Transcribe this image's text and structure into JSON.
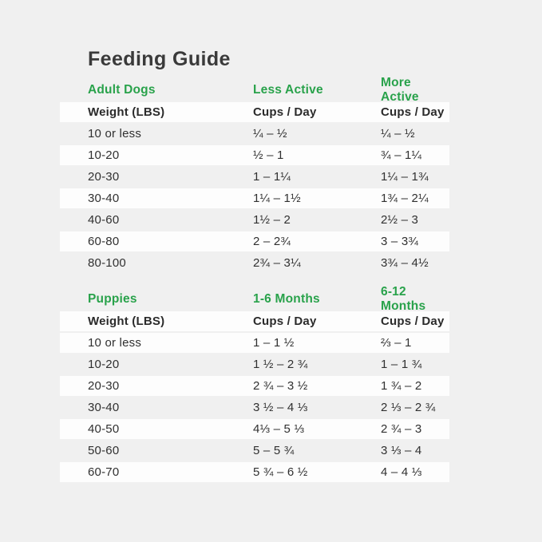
{
  "page": {
    "title": "Feeding Guide",
    "background": "#f0f0f0",
    "stripe_color": "#fdfdfd",
    "accent_green": "#29a24b",
    "title_color": "#3a3a3a"
  },
  "tables": [
    {
      "section_label": "Adult Dogs",
      "col2_label": "Less Active",
      "col3_label": "More Active",
      "header": {
        "col1": "Weight (LBS)",
        "col2": "Cups / Day",
        "col3": "Cups / Day"
      },
      "rows": [
        {
          "weight": "10 or less",
          "col2": "¼ – ½",
          "col3": "¼ – ½",
          "highlight": false
        },
        {
          "weight": "10-20",
          "col2": "½ – 1",
          "col3": "¾ – 1¼",
          "highlight": true
        },
        {
          "weight": "20-30",
          "col2": "1 – 1¼",
          "col3": "1¼ – 1¾",
          "highlight": false
        },
        {
          "weight": "30-40",
          "col2": "1¼ – 1½",
          "col3": "1¾ – 2¼",
          "highlight": true
        },
        {
          "weight": "40-60",
          "col2": "1½ – 2",
          "col3": "2½ – 3",
          "highlight": false
        },
        {
          "weight": "60-80",
          "col2": "2 – 2¾",
          "col3": "3 – 3¾",
          "highlight": true
        },
        {
          "weight": "80-100",
          "col2": "2¾ – 3¼",
          "col3": "3¾ – 4½",
          "highlight": false
        }
      ]
    },
    {
      "section_label": "Puppies",
      "col2_label": "1-6 Months",
      "col3_label": "6-12 Months",
      "header": {
        "col1": "Weight (LBS)",
        "col2": "Cups / Day",
        "col3": "Cups / Day"
      },
      "rows": [
        {
          "weight": "10 or less",
          "col2": "1 – 1 ½",
          "col3": "⅔ – 1",
          "highlight": true
        },
        {
          "weight": "10-20",
          "col2": "1 ½ – 2 ¾",
          "col3": "1 – 1 ¾",
          "highlight": false
        },
        {
          "weight": "20-30",
          "col2": "2 ¾ – 3 ½",
          "col3": "1 ¾ – 2",
          "highlight": true
        },
        {
          "weight": "30-40",
          "col2": "3 ½ – 4 ⅓",
          "col3": "2 ⅓ – 2 ¾",
          "highlight": false
        },
        {
          "weight": "40-50",
          "col2": "4⅓ – 5 ⅓",
          "col3": "2 ¾ – 3",
          "highlight": true
        },
        {
          "weight": "50-60",
          "col2": "5 – 5 ¾",
          "col3": "3 ⅓ – 4",
          "highlight": false
        },
        {
          "weight": "60-70",
          "col2": "5 ¾ – 6 ½",
          "col3": "4 – 4 ⅓",
          "highlight": true
        }
      ]
    }
  ]
}
